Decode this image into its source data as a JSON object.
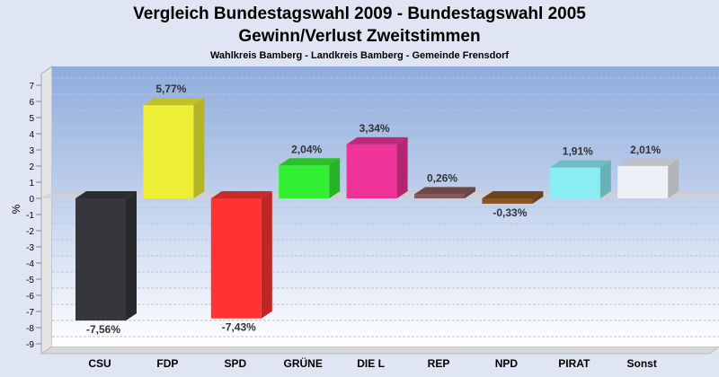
{
  "chart_data": {
    "type": "bar",
    "title": "Vergleich Bundestagswahl 2009 - Bundestagswahl 2005",
    "subtitle": "Gewinn/Verlust Zweitstimmen",
    "subsubtitle": "Wahlkreis Bamberg - Landkreis Bamberg - Gemeinde Frensdorf",
    "ylabel": "%",
    "ylim": [
      -9,
      7
    ],
    "yticks": [
      "7",
      "6",
      "5",
      "4",
      "3",
      "2",
      "1",
      "0",
      "-1",
      "-2",
      "-3",
      "-4",
      "-5",
      "-6",
      "-7",
      "-8",
      "-9"
    ],
    "categories": [
      "CSU",
      "FDP",
      "SPD",
      "GRÜNE",
      "DIE L",
      "REP",
      "NPD",
      "PIRAT",
      "Sonst"
    ],
    "values": [
      -7.56,
      5.77,
      -7.43,
      2.04,
      3.34,
      0.26,
      -0.33,
      1.91,
      2.01
    ],
    "labels": [
      "-7,56%",
      "5,77%",
      "-7,43%",
      "2,04%",
      "3,34%",
      "0,26%",
      "-0,33%",
      "1,91%",
      "2,01%"
    ],
    "colors": [
      "#35373c",
      "#eef038",
      "#ff3333",
      "#33f033",
      "#ee3399",
      "#8a5a5a",
      "#8a5522",
      "#88eef4",
      "#eef0f8"
    ],
    "grid": true
  }
}
